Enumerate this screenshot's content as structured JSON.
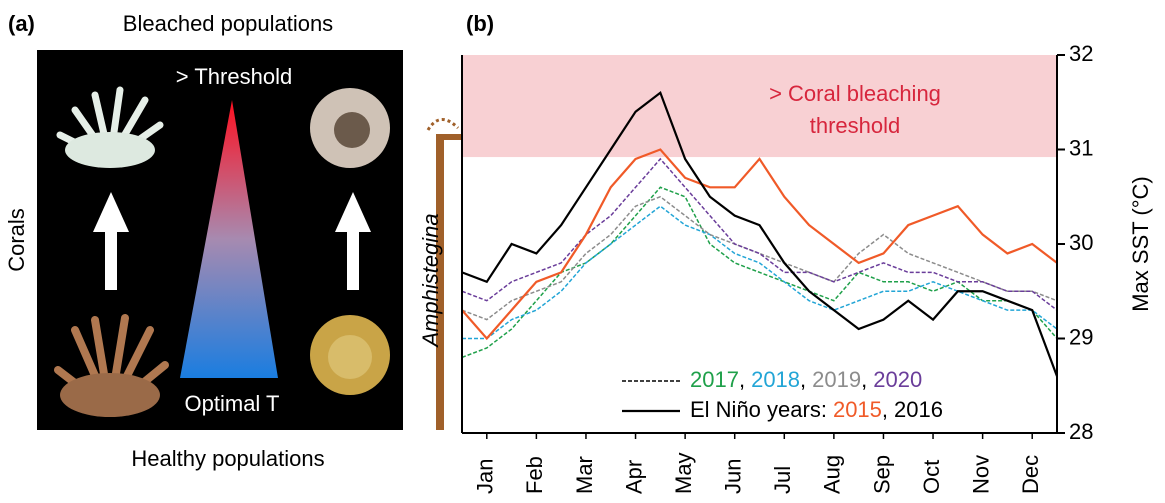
{
  "panel_a": {
    "label": "(a)",
    "top": "Bleached populations",
    "bottom": "Healthy populations",
    "side": "Corals",
    "threshold": "> Threshold",
    "optimal": "Optimal T"
  },
  "chart_data": {
    "type": "line",
    "panel_label": "(b)",
    "y_label": "Max SST (°C)",
    "organism": "Amphistegina",
    "annotation": [
      "> Coral bleaching",
      "threshold"
    ],
    "threshold": 30.92,
    "threshold_color": "#f8d0d3",
    "legend": {
      "group_label": "El Niño years:",
      "separator": ","
    },
    "xlim": [
      0,
      12
    ],
    "ylim": [
      28,
      32
    ],
    "yticks": [
      28,
      29,
      30,
      31,
      32
    ],
    "xticks": [
      {
        "value": 0.5,
        "label": "Jan"
      },
      {
        "value": 1.5,
        "label": "Feb"
      },
      {
        "value": 2.5,
        "label": "Mar"
      },
      {
        "value": 3.5,
        "label": "Apr"
      },
      {
        "value": 4.5,
        "label": "May"
      },
      {
        "value": 5.5,
        "label": "Jun"
      },
      {
        "value": 6.5,
        "label": "Jul"
      },
      {
        "value": 7.5,
        "label": "Aug"
      },
      {
        "value": 8.5,
        "label": "Sep"
      },
      {
        "value": 9.5,
        "label": "Oct"
      },
      {
        "value": 10.5,
        "label": "Nov"
      },
      {
        "value": 11.5,
        "label": "Dec"
      }
    ],
    "x": [
      0,
      0.5,
      1,
      1.5,
      2,
      2.5,
      3,
      3.5,
      4,
      4.5,
      5,
      5.5,
      6,
      6.5,
      7,
      7.5,
      8,
      8.5,
      9,
      9.5,
      10,
      10.5,
      11,
      11.5,
      12
    ],
    "series": [
      {
        "name": "2017",
        "color": "#1fa04a",
        "style": "dashed",
        "values": [
          28.8,
          28.9,
          29.1,
          29.4,
          29.7,
          29.8,
          30.0,
          30.3,
          30.6,
          30.5,
          30.0,
          29.8,
          29.7,
          29.6,
          29.5,
          29.4,
          29.7,
          29.6,
          29.6,
          29.5,
          29.6,
          29.4,
          29.4,
          29.3,
          29.0
        ]
      },
      {
        "name": "2018",
        "color": "#22a5d6",
        "style": "dashed",
        "values": [
          29.0,
          29.0,
          29.2,
          29.3,
          29.5,
          29.8,
          30.0,
          30.2,
          30.4,
          30.2,
          30.1,
          29.9,
          29.8,
          29.6,
          29.4,
          29.3,
          29.4,
          29.5,
          29.5,
          29.6,
          29.5,
          29.4,
          29.3,
          29.3,
          29.1
        ]
      },
      {
        "name": "2019",
        "color": "#8c8c8c",
        "style": "dashed",
        "values": [
          29.3,
          29.2,
          29.4,
          29.5,
          29.6,
          29.9,
          30.1,
          30.4,
          30.5,
          30.3,
          30.1,
          30.0,
          29.9,
          29.8,
          29.7,
          29.6,
          29.9,
          30.1,
          29.9,
          29.8,
          29.7,
          29.6,
          29.5,
          29.5,
          29.4
        ]
      },
      {
        "name": "2020",
        "color": "#6a3d9a",
        "style": "dashed",
        "values": [
          29.5,
          29.4,
          29.6,
          29.7,
          29.8,
          30.1,
          30.3,
          30.6,
          30.9,
          30.6,
          30.3,
          30.0,
          29.9,
          29.7,
          29.7,
          29.6,
          29.7,
          29.8,
          29.7,
          29.7,
          29.6,
          29.6,
          29.5,
          29.5,
          29.3
        ]
      },
      {
        "name": "2015",
        "color": "#f05a28",
        "style": "solid",
        "values": [
          29.3,
          29.0,
          29.3,
          29.6,
          29.7,
          30.1,
          30.6,
          30.9,
          31.0,
          30.7,
          30.6,
          30.6,
          30.9,
          30.5,
          30.2,
          30.0,
          29.8,
          29.9,
          30.2,
          30.3,
          30.4,
          30.1,
          29.9,
          30.0,
          29.8
        ]
      },
      {
        "name": "2016",
        "color": "#000000",
        "style": "solid",
        "values": [
          29.7,
          29.6,
          30.0,
          29.9,
          30.2,
          30.6,
          31.0,
          31.4,
          31.6,
          30.9,
          30.5,
          30.3,
          30.2,
          29.8,
          29.5,
          29.3,
          29.1,
          29.2,
          29.4,
          29.2,
          29.5,
          29.5,
          29.4,
          29.3,
          28.6
        ]
      }
    ]
  }
}
